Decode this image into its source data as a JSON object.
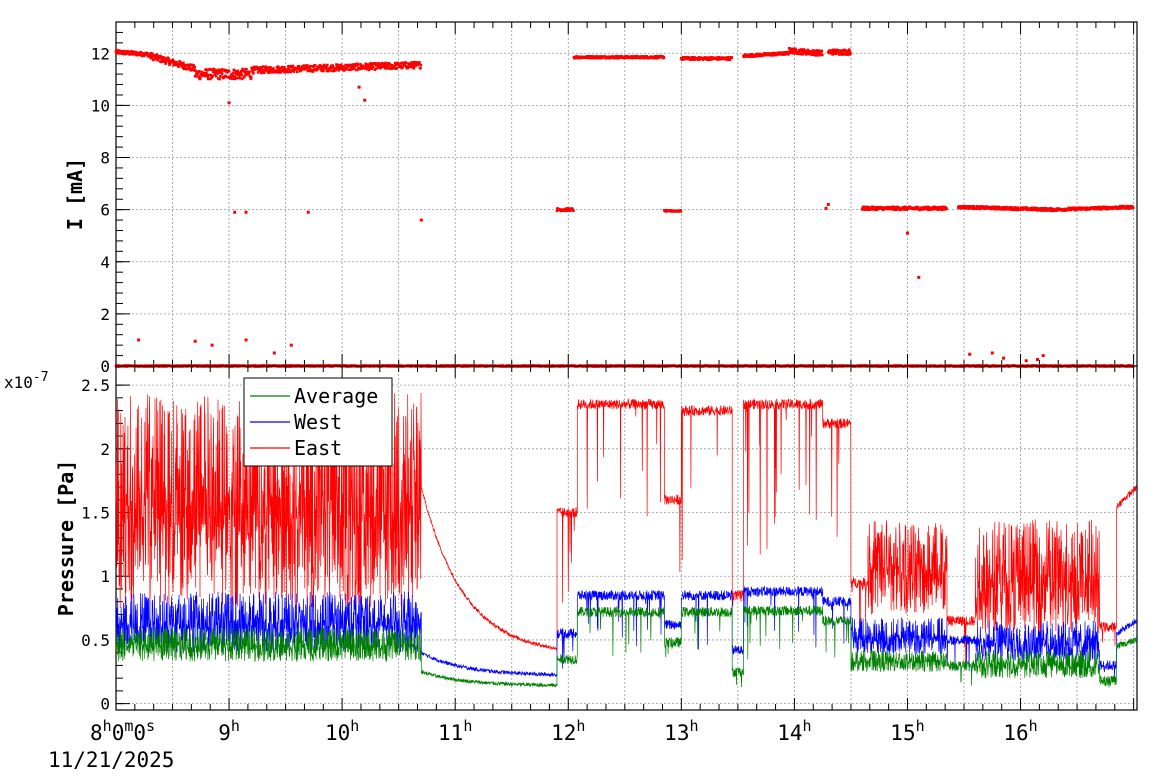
{
  "chart_data": [
    {
      "type": "scatter",
      "id": "current-panel",
      "ylabel": "I [mA]",
      "ylim": [
        0,
        13.2
      ],
      "yticks": [
        "0",
        "2",
        "4",
        "6",
        "8",
        "10",
        "12"
      ],
      "grid": true,
      "x_unit": "hours",
      "xlim": [
        8.0,
        17.03
      ],
      "series": [
        {
          "color": "#ff0000",
          "segments": [
            {
              "x_start": 8.0,
              "x_end": 8.3,
              "level": 12.05,
              "noise": 0.15,
              "trend": -0.1
            },
            {
              "x_start": 8.3,
              "x_end": 8.7,
              "level": 11.9,
              "noise": 0.25,
              "trend": -0.5
            },
            {
              "x_start": 8.7,
              "x_end": 9.2,
              "level": 11.2,
              "noise": 0.4,
              "trend": 0.0
            },
            {
              "x_start": 9.2,
              "x_end": 10.7,
              "level": 11.35,
              "noise": 0.25,
              "trend": 0.2
            },
            {
              "x_start": 12.05,
              "x_end": 12.85,
              "level": 11.85,
              "noise": 0.08,
              "trend": 0.0
            },
            {
              "x_start": 13.0,
              "x_end": 13.45,
              "level": 11.8,
              "noise": 0.1,
              "trend": 0.0
            },
            {
              "x_start": 13.55,
              "x_end": 13.95,
              "level": 11.9,
              "noise": 0.1,
              "trend": 0.1
            },
            {
              "x_start": 13.95,
              "x_end": 14.25,
              "level": 12.1,
              "noise": 0.2,
              "trend": -0.1
            },
            {
              "x_start": 14.3,
              "x_end": 14.5,
              "level": 12.05,
              "noise": 0.2,
              "trend": 0.0
            },
            {
              "x_start": 11.9,
              "x_end": 12.05,
              "level": 6.0,
              "noise": 0.1,
              "trend": 0.0
            },
            {
              "x_start": 12.85,
              "x_end": 13.0,
              "level": 5.95,
              "noise": 0.05,
              "trend": 0.0
            },
            {
              "x_start": 14.6,
              "x_end": 15.35,
              "level": 6.05,
              "noise": 0.12,
              "trend": 0.0
            },
            {
              "x_start": 15.45,
              "x_end": 16.3,
              "level": 6.1,
              "noise": 0.1,
              "trend": -0.1
            },
            {
              "x_start": 16.3,
              "x_end": 17.0,
              "level": 6.0,
              "noise": 0.1,
              "trend": 0.1
            },
            {
              "x_start": 8.0,
              "x_end": 17.0,
              "level": 0.0,
              "noise": 0.04,
              "trend": 0.0
            }
          ],
          "isolated_points": [
            [
              8.2,
              1.0
            ],
            [
              8.7,
              0.95
            ],
            [
              8.85,
              0.8
            ],
            [
              9.15,
              1.0
            ],
            [
              9.4,
              0.5
            ],
            [
              9.55,
              0.8
            ],
            [
              9.05,
              5.9
            ],
            [
              9.15,
              5.9
            ],
            [
              9.7,
              5.9
            ],
            [
              10.7,
              5.6
            ],
            [
              10.2,
              10.2
            ],
            [
              10.15,
              10.7
            ],
            [
              9.0,
              10.1
            ],
            [
              15.0,
              5.1
            ],
            [
              15.1,
              3.4
            ],
            [
              14.3,
              6.2
            ],
            [
              14.28,
              6.05
            ],
            [
              15.55,
              0.45
            ],
            [
              15.75,
              0.5
            ],
            [
              15.85,
              0.3
            ],
            [
              16.2,
              0.4
            ],
            [
              16.15,
              0.25
            ],
            [
              16.05,
              0.2
            ]
          ]
        }
      ]
    },
    {
      "type": "line",
      "id": "pressure-panel",
      "ylabel": "Pressure [Pa]",
      "y_exponent_label": "x10",
      "y_exponent": "-7",
      "ylim": [
        -0.05,
        2.65
      ],
      "yticks": [
        "0",
        "0.5",
        "1",
        "1.5",
        "2",
        "2.5"
      ],
      "grid": true,
      "legend_position": "top-left",
      "x_unit": "hours",
      "xlim": [
        8.0,
        17.03
      ],
      "xtick_labels": [
        {
          "x": 8.0,
          "label": "8",
          "sup": "h",
          "extra": "0",
          "sup2": "m",
          "extra2": "0",
          "sup3": "s"
        },
        {
          "x": 9.0,
          "label": "9",
          "sup": "h"
        },
        {
          "x": 10.0,
          "label": "10",
          "sup": "h"
        },
        {
          "x": 11.0,
          "label": "11",
          "sup": "h"
        },
        {
          "x": 12.0,
          "label": "12",
          "sup": "h"
        },
        {
          "x": 13.0,
          "label": "13",
          "sup": "h"
        },
        {
          "x": 14.0,
          "label": "14",
          "sup": "h"
        },
        {
          "x": 15.0,
          "label": "15",
          "sup": "h"
        },
        {
          "x": 16.0,
          "label": "16",
          "sup": "h"
        }
      ],
      "date_label": "11/21/2025",
      "series": [
        {
          "name": "East",
          "color": "#ff0000",
          "profile": [
            {
              "x_start": 8.0,
              "x_end": 10.7,
              "low": 0.75,
              "high": 2.45,
              "mode": "spiky"
            },
            {
              "x_start": 10.7,
              "x_end": 11.9,
              "decay_from": 1.7,
              "decay_to": 0.38,
              "mode": "decay"
            },
            {
              "x_start": 11.9,
              "x_end": 12.08,
              "level": 1.5,
              "mode": "flat"
            },
            {
              "x_start": 12.08,
              "x_end": 12.85,
              "level": 2.35,
              "mode": "flat"
            },
            {
              "x_start": 12.85,
              "x_end": 13.0,
              "level": 1.6,
              "mode": "flat"
            },
            {
              "x_start": 13.0,
              "x_end": 13.45,
              "level": 2.3,
              "mode": "flat"
            },
            {
              "x_start": 13.45,
              "x_end": 13.55,
              "level": 0.85,
              "mode": "flat"
            },
            {
              "x_start": 13.55,
              "x_end": 14.25,
              "level": 2.35,
              "mode": "flat"
            },
            {
              "x_start": 14.25,
              "x_end": 14.5,
              "level": 2.2,
              "mode": "flat"
            },
            {
              "x_start": 14.5,
              "x_end": 14.65,
              "level": 0.95,
              "mode": "flat"
            },
            {
              "x_start": 14.65,
              "x_end": 15.35,
              "low": 0.7,
              "high": 1.45,
              "mode": "spiky"
            },
            {
              "x_start": 15.35,
              "x_end": 15.6,
              "level": 0.65,
              "mode": "flat"
            },
            {
              "x_start": 15.6,
              "x_end": 16.7,
              "low": 0.55,
              "high": 1.45,
              "mode": "spiky"
            },
            {
              "x_start": 16.7,
              "x_end": 16.85,
              "level": 0.6,
              "mode": "flat"
            },
            {
              "x_start": 16.85,
              "x_end": 17.03,
              "level": 1.55,
              "mode": "rise_to",
              "to": 1.7
            }
          ]
        },
        {
          "name": "West",
          "color": "#0000ff",
          "profile": [
            {
              "x_start": 8.0,
              "x_end": 10.7,
              "low": 0.4,
              "high": 0.88,
              "mode": "spiky"
            },
            {
              "x_start": 10.7,
              "x_end": 11.9,
              "decay_from": 0.4,
              "decay_to": 0.22,
              "mode": "decay"
            },
            {
              "x_start": 11.9,
              "x_end": 12.08,
              "level": 0.55,
              "mode": "flat"
            },
            {
              "x_start": 12.08,
              "x_end": 12.85,
              "level": 0.85,
              "mode": "flat"
            },
            {
              "x_start": 12.85,
              "x_end": 13.0,
              "level": 0.62,
              "mode": "flat"
            },
            {
              "x_start": 13.0,
              "x_end": 13.45,
              "level": 0.85,
              "mode": "flat"
            },
            {
              "x_start": 13.45,
              "x_end": 13.55,
              "level": 0.42,
              "mode": "flat"
            },
            {
              "x_start": 13.55,
              "x_end": 14.25,
              "level": 0.88,
              "mode": "flat"
            },
            {
              "x_start": 14.25,
              "x_end": 14.5,
              "level": 0.8,
              "mode": "flat"
            },
            {
              "x_start": 14.5,
              "x_end": 15.35,
              "low": 0.38,
              "high": 0.68,
              "mode": "spiky"
            },
            {
              "x_start": 15.35,
              "x_end": 15.6,
              "level": 0.5,
              "mode": "flat"
            },
            {
              "x_start": 15.6,
              "x_end": 16.7,
              "low": 0.33,
              "high": 0.65,
              "mode": "spiky"
            },
            {
              "x_start": 16.7,
              "x_end": 16.85,
              "level": 0.3,
              "mode": "flat"
            },
            {
              "x_start": 16.85,
              "x_end": 17.03,
              "level": 0.55,
              "mode": "rise_to",
              "to": 0.65
            }
          ]
        },
        {
          "name": "Average",
          "color": "#008000",
          "profile": [
            {
              "x_start": 8.0,
              "x_end": 10.7,
              "low": 0.33,
              "high": 0.6,
              "mode": "spiky"
            },
            {
              "x_start": 10.7,
              "x_end": 11.9,
              "decay_from": 0.25,
              "decay_to": 0.14,
              "mode": "decay"
            },
            {
              "x_start": 11.9,
              "x_end": 12.08,
              "level": 0.35,
              "mode": "flat"
            },
            {
              "x_start": 12.08,
              "x_end": 12.85,
              "level": 0.72,
              "mode": "flat"
            },
            {
              "x_start": 12.85,
              "x_end": 13.0,
              "level": 0.48,
              "mode": "flat"
            },
            {
              "x_start": 13.0,
              "x_end": 13.45,
              "level": 0.72,
              "mode": "flat"
            },
            {
              "x_start": 13.45,
              "x_end": 13.55,
              "level": 0.25,
              "mode": "flat"
            },
            {
              "x_start": 13.55,
              "x_end": 14.25,
              "level": 0.73,
              "mode": "flat"
            },
            {
              "x_start": 14.25,
              "x_end": 14.5,
              "level": 0.65,
              "mode": "flat"
            },
            {
              "x_start": 14.5,
              "x_end": 15.35,
              "low": 0.25,
              "high": 0.42,
              "mode": "spiky"
            },
            {
              "x_start": 15.35,
              "x_end": 15.6,
              "level": 0.3,
              "mode": "flat"
            },
            {
              "x_start": 15.6,
              "x_end": 16.7,
              "low": 0.2,
              "high": 0.42,
              "mode": "spiky"
            },
            {
              "x_start": 16.7,
              "x_end": 16.85,
              "level": 0.18,
              "mode": "flat"
            },
            {
              "x_start": 16.85,
              "x_end": 17.03,
              "level": 0.45,
              "mode": "rise_to",
              "to": 0.5
            }
          ]
        }
      ],
      "legend_entries": [
        "Average",
        "West",
        "East"
      ]
    }
  ]
}
